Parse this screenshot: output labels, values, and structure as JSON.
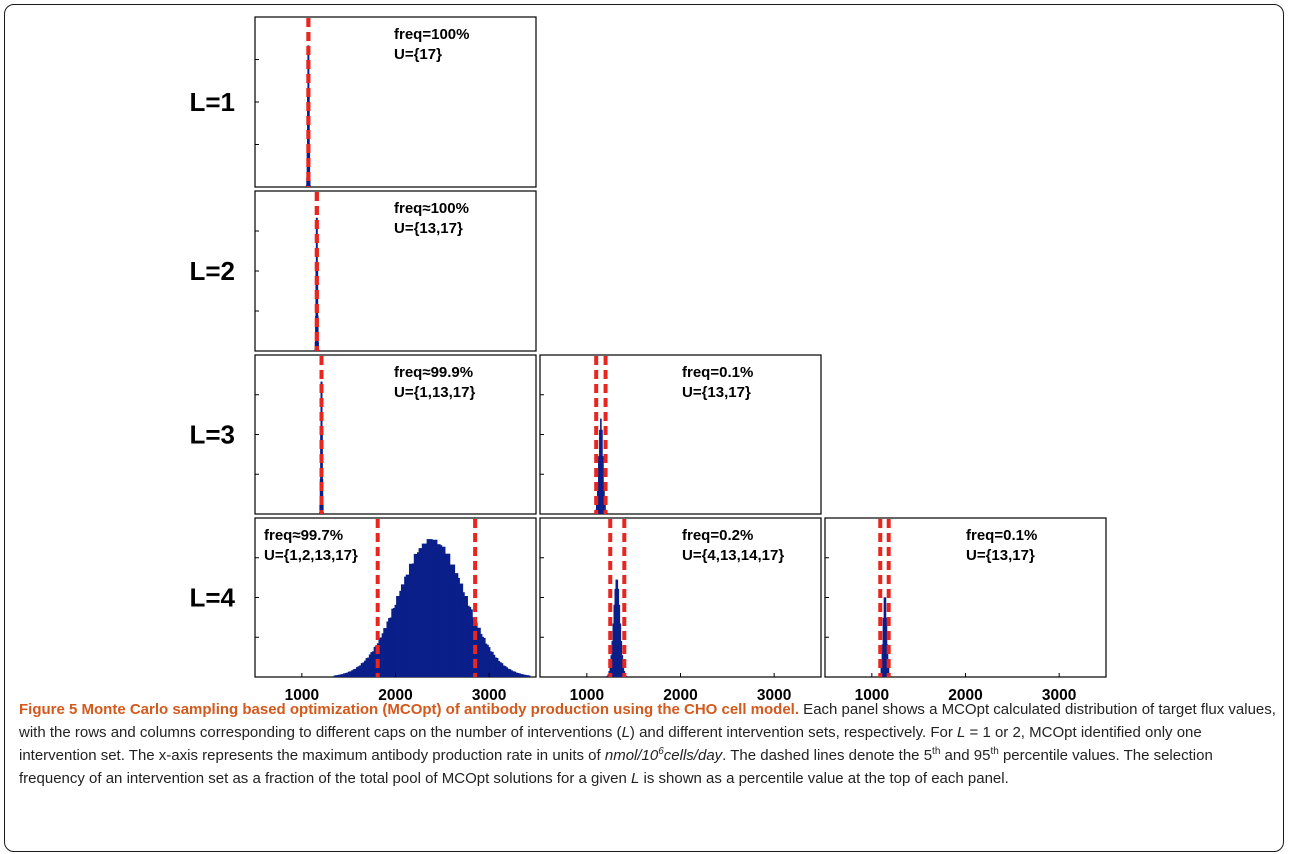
{
  "chart_data": {
    "type": "histogram-grid",
    "x_tick_labels": [
      "1000",
      "2000",
      "3000"
    ],
    "xlim": [
      500,
      3500
    ],
    "rows": [
      {
        "label": "L=1",
        "panels": [
          {
            "col": 0,
            "freq": "freq=100%",
            "set": "U={17}",
            "p5": 1070,
            "p95": 1070,
            "center": 1070,
            "spread": 6,
            "peak": 0.88
          }
        ]
      },
      {
        "label": "L=2",
        "panels": [
          {
            "col": 0,
            "freq": "freq≈100%",
            "set": "U={13,17}",
            "p5": 1160,
            "p95": 1160,
            "center": 1160,
            "spread": 6,
            "peak": 0.88
          }
        ]
      },
      {
        "label": "L=3",
        "panels": [
          {
            "col": 0,
            "freq": "freq≈99.9%",
            "set": "U={1,13,17}",
            "p5": 1210,
            "p95": 1210,
            "center": 1210,
            "spread": 6,
            "peak": 0.88
          },
          {
            "col": 1,
            "freq": "freq=0.1%",
            "set": "U={13,17}",
            "p5": 1100,
            "p95": 1200,
            "center": 1150,
            "spread": 22,
            "peak": 0.6
          }
        ]
      },
      {
        "label": "L=4",
        "panels": [
          {
            "col": 0,
            "freq": "freq≈99.7%",
            "set": "U={1,2,13,17}",
            "p5": 1810,
            "p95": 2850,
            "center": 2390,
            "spread": 340,
            "peak": 0.87
          },
          {
            "col": 1,
            "freq": "freq=0.2%",
            "set": "U={4,13,14,17}",
            "p5": 1250,
            "p95": 1400,
            "center": 1320,
            "spread": 34,
            "peak": 0.62
          },
          {
            "col": 2,
            "freq": "freq=0.1%",
            "set": "U={13,17}",
            "p5": 1090,
            "p95": 1180,
            "center": 1140,
            "spread": 20,
            "peak": 0.52
          }
        ]
      }
    ],
    "colors": {
      "bars": "#0b1f8a",
      "percentile_lines": "#e8251f",
      "figure_label": "#d3591c"
    }
  },
  "caption": {
    "figure_label": "Figure 5 Monte Carlo sampling based optimization (MCOpt) of antibody production using the CHO cell model.",
    "s1": " Each panel shows a MCOpt calculated distribution of target flux values, with the rows and columns corresponding to different caps on the number of interventions (",
    "L": "L",
    "s2": ") and different intervention sets, respectively. For ",
    "s3": " = 1 or 2, MCOpt identified only one intervention set. The x-axis represents the maximum antibody production rate in units of ",
    "units_a": "nmol/10",
    "units_sup": "6",
    "units_b": "cells/day",
    "s4": ". The dashed lines denote the 5",
    "th1": "th",
    "s5": " and 95",
    "th2": "th",
    "s6": " percentile values. The selection frequency of an intervention set as a fraction of the total pool of MCOpt solutions for a given ",
    "s7": " is shown as a percentile value at the top of each panel."
  }
}
